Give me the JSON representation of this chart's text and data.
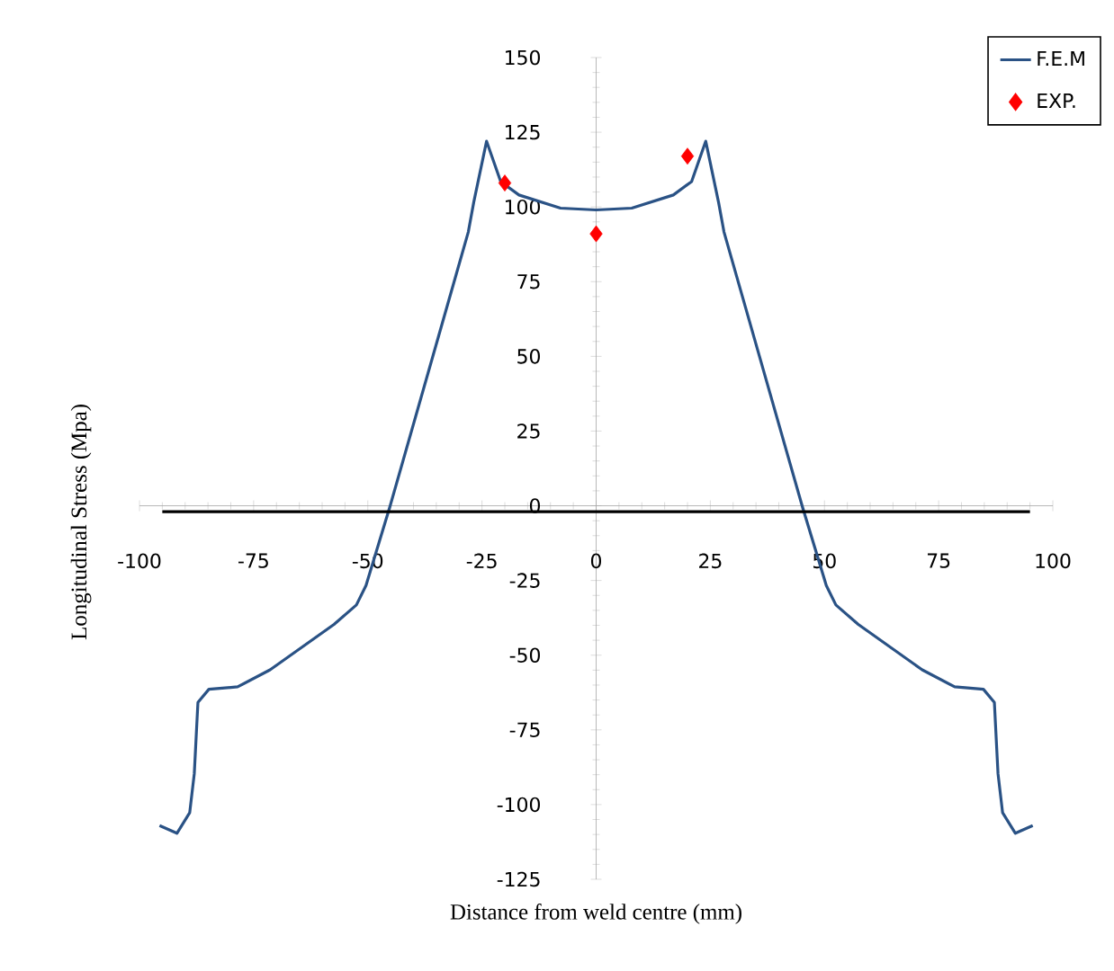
{
  "chart_data": {
    "type": "line",
    "xlabel": "Distance from weld centre (mm)",
    "ylabel": "Longitudinal Stress (Mpa)",
    "xlim": [
      -100,
      100
    ],
    "xticks": [
      -100,
      -75,
      -50,
      -25,
      0,
      25,
      50,
      75,
      100
    ],
    "ylim": [
      -125,
      150
    ],
    "yticks": [
      -125,
      -100,
      -75,
      -50,
      -25,
      0,
      25,
      50,
      75,
      100,
      125,
      150
    ],
    "legend": "top right",
    "series": [
      {
        "name": "F.E.M",
        "color": "#2a5285",
        "marker": "none",
        "line_style": "solid",
        "x": [
          -95.6,
          -91.8,
          -89,
          -88,
          -87.2,
          -84.8,
          -78.5,
          -71.4,
          -57.4,
          -52.5,
          -50.4,
          -45.1,
          -28,
          -26.8,
          -24,
          -20.9,
          -16.9,
          -7.8,
          0,
          7.8,
          16.9,
          20.9,
          24,
          26.8,
          28,
          45.1,
          50.4,
          52.5,
          57.4,
          71.4,
          78.5,
          84.8,
          87.2,
          88,
          89,
          91.8,
          95.6
        ],
        "values": [
          -107,
          -109.6,
          -102.7,
          -89.7,
          -65.8,
          -61.4,
          -60.6,
          -54.9,
          -39.7,
          -33.2,
          -26.7,
          0,
          91.6,
          101.6,
          122,
          108.5,
          104,
          99.6,
          99,
          99.6,
          104,
          108.5,
          122,
          101.6,
          91.6,
          0,
          -26.7,
          -33.2,
          -39.7,
          -54.9,
          -60.6,
          -61.4,
          -65.8,
          -89.7,
          -102.7,
          -109.6,
          -107
        ]
      },
      {
        "name": "EXP.",
        "type": "scatter",
        "color": "#ff0000",
        "marker": "diamond",
        "x": [
          -20,
          0,
          20
        ],
        "values": [
          108,
          91,
          117
        ]
      },
      {
        "color": "#000000",
        "marker": "none",
        "line_style": "solid",
        "x": [
          -95,
          95
        ],
        "values": [
          -2,
          -2
        ]
      }
    ]
  }
}
